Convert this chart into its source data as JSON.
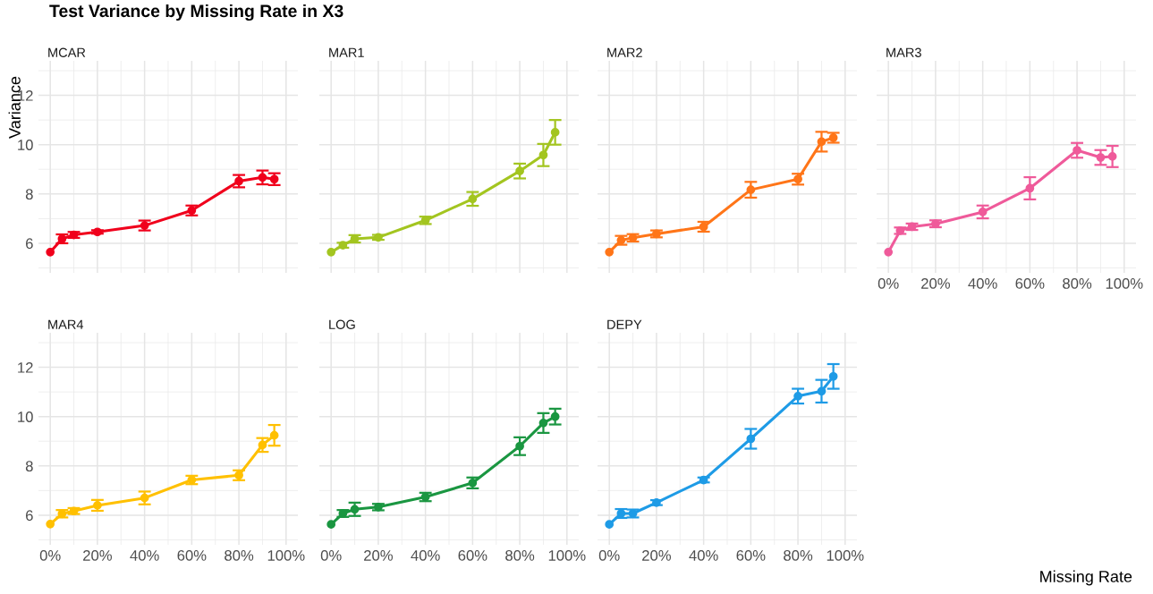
{
  "chart_data": [
    {
      "type": "line",
      "title": "Test Variance by Missing Rate in X3",
      "subtitle": "MCAR",
      "ylabel": "Variance",
      "x": [
        0,
        5,
        10,
        20,
        40,
        60,
        80,
        90,
        95
      ],
      "xlim": [
        -5,
        105
      ],
      "xticks": [
        {
          "value": 0,
          "label": null
        },
        {
          "value": 20,
          "label": null
        },
        {
          "value": 40,
          "label": null
        },
        {
          "value": 60,
          "label": null
        },
        {
          "value": 80,
          "label": null
        },
        {
          "value": 100,
          "label": null
        }
      ],
      "ylim": [
        4.8,
        13.4
      ],
      "yticks": [
        6,
        8,
        10,
        12
      ],
      "tick_labels": "y",
      "grid": true,
      "marker": "circle",
      "line_style": "solid",
      "series": [
        {
          "color": "#f0001c",
          "values": [
            5.64,
            6.18,
            6.34,
            6.46,
            6.72,
            7.33,
            8.52,
            8.67,
            8.6
          ],
          "errors": [
            null,
            0.18,
            0.12,
            0.07,
            0.2,
            0.2,
            0.25,
            0.28,
            0.24
          ]
        }
      ]
    },
    {
      "type": "line",
      "subtitle": "MAR1",
      "x": [
        0,
        5,
        10,
        20,
        40,
        60,
        80,
        90,
        95
      ],
      "xlim": [
        -5,
        105
      ],
      "xticks": [
        {
          "value": 0,
          "label": null
        },
        {
          "value": 20,
          "label": null
        },
        {
          "value": 40,
          "label": null
        },
        {
          "value": 60,
          "label": null
        },
        {
          "value": 80,
          "label": null
        },
        {
          "value": 100,
          "label": null
        }
      ],
      "ylim": [
        4.8,
        13.4
      ],
      "yticks": [
        6,
        8,
        10,
        12
      ],
      "tick_labels": false,
      "grid": true,
      "marker": "circle",
      "line_style": "solid",
      "series": [
        {
          "color": "#a3c520",
          "values": [
            5.64,
            5.92,
            6.18,
            6.24,
            6.93,
            7.8,
            8.93,
            9.58,
            10.5
          ],
          "errors": [
            null,
            0.1,
            0.15,
            0.1,
            0.15,
            0.28,
            0.3,
            0.45,
            0.5
          ]
        }
      ]
    },
    {
      "type": "line",
      "subtitle": "MAR2",
      "x": [
        0,
        5,
        10,
        20,
        40,
        60,
        80,
        90,
        95
      ],
      "xlim": [
        -5,
        105
      ],
      "xticks": [
        {
          "value": 0,
          "label": null
        },
        {
          "value": 20,
          "label": null
        },
        {
          "value": 40,
          "label": null
        },
        {
          "value": 60,
          "label": null
        },
        {
          "value": 80,
          "label": null
        },
        {
          "value": 100,
          "label": null
        }
      ],
      "ylim": [
        4.8,
        13.4
      ],
      "yticks": [
        6,
        8,
        10,
        12
      ],
      "tick_labels": false,
      "grid": true,
      "marker": "circle",
      "line_style": "solid",
      "series": [
        {
          "color": "#ff7518",
          "values": [
            5.64,
            6.12,
            6.22,
            6.38,
            6.67,
            8.17,
            8.6,
            10.12,
            10.28
          ],
          "errors": [
            null,
            0.18,
            0.15,
            0.14,
            0.2,
            0.32,
            0.22,
            0.4,
            0.2
          ]
        }
      ]
    },
    {
      "type": "line",
      "subtitle": "MAR3",
      "xlabel": "Missing Rate",
      "x": [
        0,
        5,
        10,
        20,
        40,
        60,
        80,
        90,
        95
      ],
      "xlim": [
        -5,
        105
      ],
      "xticks": [
        {
          "value": 0,
          "label": "0%"
        },
        {
          "value": 20,
          "label": "20%"
        },
        {
          "value": 40,
          "label": "40%"
        },
        {
          "value": 60,
          "label": "60%"
        },
        {
          "value": 80,
          "label": "80%"
        },
        {
          "value": 100,
          "label": "100%"
        }
      ],
      "ylim": [
        4.8,
        13.4
      ],
      "yticks": [
        6,
        8,
        10,
        12
      ],
      "tick_labels": "x",
      "grid": true,
      "marker": "circle",
      "line_style": "solid",
      "series": [
        {
          "color": "#ef5a9a",
          "values": [
            5.64,
            6.51,
            6.67,
            6.79,
            7.27,
            8.23,
            9.77,
            9.48,
            9.52
          ],
          "errors": [
            null,
            0.13,
            0.13,
            0.14,
            0.26,
            0.45,
            0.3,
            0.3,
            0.43
          ]
        }
      ]
    },
    {
      "type": "line",
      "subtitle": "MAR4",
      "x": [
        0,
        5,
        10,
        20,
        40,
        60,
        80,
        90,
        95
      ],
      "xlim": [
        -5,
        105
      ],
      "xticks": [
        {
          "value": 0,
          "label": "0%"
        },
        {
          "value": 20,
          "label": "20%"
        },
        {
          "value": 40,
          "label": "40%"
        },
        {
          "value": 60,
          "label": "60%"
        },
        {
          "value": 80,
          "label": "80%"
        },
        {
          "value": 100,
          "label": "100%"
        }
      ],
      "ylim": [
        4.8,
        13.4
      ],
      "yticks": [
        6,
        8,
        10,
        12
      ],
      "grid": true,
      "marker": "circle",
      "line_style": "solid",
      "series": [
        {
          "color": "#ffc000",
          "values": [
            5.64,
            6.06,
            6.17,
            6.4,
            6.7,
            7.43,
            7.62,
            8.85,
            9.24
          ],
          "errors": [
            null,
            0.15,
            0.12,
            0.22,
            0.26,
            0.17,
            0.2,
            0.28,
            0.42
          ]
        }
      ]
    },
    {
      "type": "line",
      "subtitle": "LOG",
      "x": [
        0,
        5,
        10,
        20,
        40,
        60,
        80,
        90,
        95
      ],
      "xlim": [
        -5,
        105
      ],
      "xticks": [
        {
          "value": 0,
          "label": "0%"
        },
        {
          "value": 20,
          "label": "20%"
        },
        {
          "value": 40,
          "label": "40%"
        },
        {
          "value": 60,
          "label": "60%"
        },
        {
          "value": 80,
          "label": "80%"
        },
        {
          "value": 100,
          "label": "100%"
        }
      ],
      "ylim": [
        4.8,
        13.4
      ],
      "yticks": [
        6,
        8,
        10,
        12
      ],
      "tick_labels": "x",
      "grid": true,
      "marker": "circle",
      "line_style": "solid",
      "series": [
        {
          "color": "#1a9641",
          "values": [
            5.63,
            6.07,
            6.24,
            6.33,
            6.74,
            7.31,
            8.8,
            9.74,
            10.0
          ],
          "errors": [
            null,
            0.14,
            0.27,
            0.13,
            0.17,
            0.22,
            0.36,
            0.4,
            0.32
          ]
        }
      ]
    },
    {
      "type": "line",
      "subtitle": "DEPY",
      "x": [
        0,
        5,
        10,
        20,
        40,
        60,
        80,
        90,
        95
      ],
      "xlim": [
        -5,
        105
      ],
      "xticks": [
        {
          "value": 0,
          "label": "0%"
        },
        {
          "value": 20,
          "label": "20%"
        },
        {
          "value": 40,
          "label": "40%"
        },
        {
          "value": 60,
          "label": "60%"
        },
        {
          "value": 80,
          "label": "80%"
        },
        {
          "value": 100,
          "label": "100%"
        }
      ],
      "ylim": [
        4.8,
        13.4
      ],
      "yticks": [
        6,
        8,
        10,
        12
      ],
      "tick_labels": "x",
      "grid": true,
      "marker": "circle",
      "line_style": "solid",
      "series": [
        {
          "color": "#1e9be6",
          "values": [
            5.63,
            6.07,
            6.07,
            6.51,
            7.43,
            9.1,
            10.83,
            11.03,
            11.63
          ],
          "errors": [
            null,
            0.18,
            0.16,
            0.1,
            0.1,
            0.4,
            0.3,
            0.46,
            0.5
          ]
        }
      ]
    }
  ]
}
